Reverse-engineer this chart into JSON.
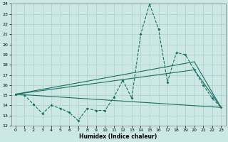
{
  "xlabel": "Humidex (Indice chaleur)",
  "bg_color": "#cce8e4",
  "grid_color": "#b0ccc8",
  "line_color": "#1a6e64",
  "xlim": [
    -0.5,
    23.5
  ],
  "ylim": [
    12,
    24
  ],
  "xticks": [
    0,
    1,
    2,
    3,
    4,
    5,
    6,
    7,
    8,
    9,
    10,
    11,
    12,
    13,
    14,
    15,
    16,
    17,
    18,
    19,
    20,
    21,
    22,
    23
  ],
  "yticks": [
    12,
    13,
    14,
    15,
    16,
    17,
    18,
    19,
    20,
    21,
    22,
    23,
    24
  ],
  "series1_x": [
    0,
    1,
    2,
    3,
    4,
    5,
    6,
    7,
    8,
    9,
    10,
    11,
    12,
    13,
    14,
    15,
    16,
    17,
    18,
    19,
    20,
    21,
    22,
    23
  ],
  "series1_y": [
    15.1,
    15.0,
    14.1,
    13.2,
    14.0,
    13.7,
    13.3,
    12.5,
    13.7,
    13.5,
    13.5,
    14.8,
    16.5,
    14.7,
    21.0,
    24.0,
    21.5,
    16.3,
    19.2,
    19.0,
    17.5,
    16.0,
    14.7,
    13.8
  ],
  "series2_x": [
    0,
    23
  ],
  "series2_y": [
    15.1,
    13.8
  ],
  "series3_x": [
    0,
    20,
    23
  ],
  "series3_y": [
    15.1,
    17.5,
    13.8
  ],
  "series4_x": [
    0,
    20,
    23
  ],
  "series4_y": [
    15.1,
    18.3,
    13.8
  ]
}
